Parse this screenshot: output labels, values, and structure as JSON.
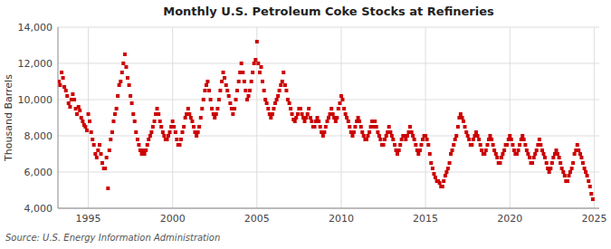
{
  "chart_data": {
    "type": "scatter",
    "title": "Monthly U.S. Petroleum Coke Stocks at Refineries",
    "y_label": "Thousand Barrels",
    "annotation": "Source: U.S. Energy Information Administration",
    "color": "#CC0000",
    "marker": "square",
    "grid": true,
    "xlim": [
      1993.2,
      2025.3
    ],
    "xticks": [
      1995,
      2000,
      2005,
      2010,
      2015,
      2020,
      2025
    ],
    "ylim": [
      4000,
      14000
    ],
    "yticks": [
      {
        "value": 4000,
        "label": "4,000"
      },
      {
        "value": 6000,
        "label": "6,000"
      },
      {
        "value": 8000,
        "label": "8,000"
      },
      {
        "value": 10000,
        "label": "10,000"
      },
      {
        "value": 12000,
        "label": "12,000"
      },
      {
        "value": 14000,
        "label": "14,000"
      }
    ],
    "x": [
      1993.25,
      1993.33,
      1993.42,
      1993.5,
      1993.58,
      1993.67,
      1993.75,
      1993.83,
      1993.92,
      1994.0,
      1994.08,
      1994.17,
      1994.25,
      1994.33,
      1994.42,
      1994.5,
      1994.58,
      1994.67,
      1994.75,
      1994.83,
      1994.92,
      1995.0,
      1995.08,
      1995.17,
      1995.25,
      1995.33,
      1995.42,
      1995.5,
      1995.58,
      1995.67,
      1995.75,
      1995.83,
      1995.92,
      1996.0,
      1996.08,
      1996.17,
      1996.25,
      1996.33,
      1996.42,
      1996.5,
      1996.58,
      1996.67,
      1996.75,
      1996.83,
      1996.92,
      1997.0,
      1997.08,
      1997.17,
      1997.25,
      1997.33,
      1997.42,
      1997.5,
      1997.58,
      1997.67,
      1997.75,
      1997.83,
      1997.92,
      1998.0,
      1998.08,
      1998.17,
      1998.25,
      1998.33,
      1998.42,
      1998.5,
      1998.58,
      1998.67,
      1998.75,
      1998.83,
      1998.92,
      1999.0,
      1999.08,
      1999.17,
      1999.25,
      1999.33,
      1999.42,
      1999.5,
      1999.58,
      1999.67,
      1999.75,
      1999.83,
      1999.92,
      2000.0,
      2000.08,
      2000.17,
      2000.25,
      2000.33,
      2000.42,
      2000.5,
      2000.58,
      2000.67,
      2000.75,
      2000.83,
      2000.92,
      2001.0,
      2001.08,
      2001.17,
      2001.25,
      2001.33,
      2001.42,
      2001.5,
      2001.58,
      2001.67,
      2001.75,
      2001.83,
      2001.92,
      2002.0,
      2002.08,
      2002.17,
      2002.25,
      2002.33,
      2002.42,
      2002.5,
      2002.58,
      2002.67,
      2002.75,
      2002.83,
      2002.92,
      2003.0,
      2003.08,
      2003.17,
      2003.25,
      2003.33,
      2003.42,
      2003.5,
      2003.58,
      2003.67,
      2003.75,
      2003.83,
      2003.92,
      2004.0,
      2004.08,
      2004.17,
      2004.25,
      2004.33,
      2004.42,
      2004.5,
      2004.58,
      2004.67,
      2004.75,
      2004.83,
      2004.92,
      2005.0,
      2005.08,
      2005.17,
      2005.25,
      2005.33,
      2005.42,
      2005.5,
      2005.58,
      2005.67,
      2005.75,
      2005.83,
      2005.92,
      2006.0,
      2006.08,
      2006.17,
      2006.25,
      2006.33,
      2006.42,
      2006.5,
      2006.58,
      2006.67,
      2006.75,
      2006.83,
      2006.92,
      2007.0,
      2007.08,
      2007.17,
      2007.25,
      2007.33,
      2007.42,
      2007.5,
      2007.58,
      2007.67,
      2007.75,
      2007.83,
      2007.92,
      2008.0,
      2008.08,
      2008.17,
      2008.25,
      2008.33,
      2008.42,
      2008.5,
      2008.58,
      2008.67,
      2008.75,
      2008.83,
      2008.92,
      2009.0,
      2009.08,
      2009.17,
      2009.25,
      2009.33,
      2009.42,
      2009.5,
      2009.58,
      2009.67,
      2009.75,
      2009.83,
      2009.92,
      2010.0,
      2010.08,
      2010.17,
      2010.25,
      2010.33,
      2010.42,
      2010.5,
      2010.58,
      2010.67,
      2010.75,
      2010.83,
      2010.92,
      2011.0,
      2011.08,
      2011.17,
      2011.25,
      2011.33,
      2011.42,
      2011.5,
      2011.58,
      2011.67,
      2011.75,
      2011.83,
      2011.92,
      2012.0,
      2012.08,
      2012.17,
      2012.25,
      2012.33,
      2012.42,
      2012.5,
      2012.58,
      2012.67,
      2012.75,
      2012.83,
      2012.92,
      2013.0,
      2013.08,
      2013.17,
      2013.25,
      2013.33,
      2013.42,
      2013.5,
      2013.58,
      2013.67,
      2013.75,
      2013.83,
      2013.92,
      2014.0,
      2014.08,
      2014.17,
      2014.25,
      2014.33,
      2014.42,
      2014.5,
      2014.58,
      2014.67,
      2014.75,
      2014.83,
      2014.92,
      2015.0,
      2015.08,
      2015.17,
      2015.25,
      2015.33,
      2015.42,
      2015.5,
      2015.58,
      2015.67,
      2015.75,
      2015.83,
      2015.92,
      2016.0,
      2016.08,
      2016.17,
      2016.25,
      2016.33,
      2016.42,
      2016.5,
      2016.58,
      2016.67,
      2016.75,
      2016.83,
      2016.92,
      2017.0,
      2017.08,
      2017.17,
      2017.25,
      2017.33,
      2017.42,
      2017.5,
      2017.58,
      2017.67,
      2017.75,
      2017.83,
      2017.92,
      2018.0,
      2018.08,
      2018.17,
      2018.25,
      2018.33,
      2018.42,
      2018.5,
      2018.58,
      2018.67,
      2018.75,
      2018.83,
      2018.92,
      2019.0,
      2019.08,
      2019.17,
      2019.25,
      2019.33,
      2019.42,
      2019.5,
      2019.58,
      2019.67,
      2019.75,
      2019.83,
      2019.92,
      2020.0,
      2020.08,
      2020.17,
      2020.25,
      2020.33,
      2020.42,
      2020.5,
      2020.58,
      2020.67,
      2020.75,
      2020.83,
      2020.92,
      2021.0,
      2021.08,
      2021.17,
      2021.25,
      2021.33,
      2021.42,
      2021.5,
      2021.58,
      2021.67,
      2021.75,
      2021.83,
      2021.92,
      2022.0,
      2022.08,
      2022.17,
      2022.25,
      2022.33,
      2022.42,
      2022.5,
      2022.58,
      2022.67,
      2022.75,
      2022.83,
      2022.92,
      2023.0,
      2023.08,
      2023.17,
      2023.25,
      2023.33,
      2023.42,
      2023.5,
      2023.58,
      2023.67,
      2023.75,
      2023.83,
      2023.92,
      2024.0,
      2024.08,
      2024.17,
      2024.25,
      2024.33,
      2024.42,
      2024.5,
      2024.58,
      2024.67,
      2024.75,
      2024.83,
      2024.92
    ],
    "values": [
      11000,
      10800,
      11500,
      11200,
      10700,
      10500,
      10200,
      9800,
      9600,
      10000,
      10300,
      10000,
      9500,
      9200,
      9600,
      9400,
      9000,
      8800,
      8600,
      8500,
      8300,
      9200,
      8800,
      8200,
      7800,
      7500,
      7000,
      6800,
      7200,
      7500,
      7000,
      6500,
      6200,
      6200,
      6800,
      5100,
      7200,
      7800,
      8200,
      8800,
      9200,
      9500,
      10200,
      10800,
      11000,
      11500,
      12000,
      12500,
      11800,
      11200,
      10800,
      10200,
      9800,
      9200,
      8800,
      8200,
      7800,
      7500,
      7200,
      7000,
      7200,
      7000,
      7200,
      7500,
      7800,
      8000,
      8200,
      8500,
      8800,
      9200,
      9500,
      9200,
      8800,
      8500,
      8200,
      8000,
      7800,
      7800,
      8000,
      8200,
      8500,
      8800,
      8500,
      8200,
      7800,
      7500,
      7500,
      7800,
      8200,
      8500,
      9000,
      9200,
      9500,
      9200,
      9000,
      8800,
      8500,
      8200,
      8000,
      8200,
      8500,
      9000,
      9500,
      10000,
      10500,
      10800,
      11000,
      10500,
      10000,
      9500,
      9200,
      9000,
      9200,
      9500,
      10000,
      10500,
      11000,
      11500,
      11200,
      10800,
      10500,
      10200,
      9800,
      9500,
      9200,
      9500,
      10000,
      10500,
      11000,
      11500,
      12000,
      11500,
      11000,
      10500,
      10000,
      10200,
      10500,
      11000,
      11500,
      12000,
      12200,
      13200,
      12000,
      11500,
      11800,
      11000,
      10500,
      10000,
      9800,
      9500,
      9200,
      9000,
      9200,
      9500,
      9800,
      10000,
      10200,
      10500,
      10800,
      11000,
      11500,
      10800,
      10500,
      10000,
      9800,
      9500,
      9200,
      8900,
      8800,
      9000,
      9200,
      9500,
      9500,
      9200,
      9000,
      8800,
      9000,
      9200,
      9500,
      9000,
      8800,
      8500,
      8500,
      8800,
      9000,
      8800,
      8500,
      8200,
      8000,
      8200,
      8500,
      8800,
      9000,
      9200,
      9500,
      9200,
      9000,
      8800,
      9000,
      9500,
      9800,
      10200,
      10000,
      9500,
      9200,
      9000,
      8800,
      8500,
      8200,
      8000,
      8200,
      8500,
      8800,
      9000,
      8800,
      8500,
      8200,
      8000,
      7800,
      7800,
      8000,
      8200,
      8500,
      8800,
      8500,
      8800,
      8500,
      8200,
      8000,
      7800,
      7500,
      7500,
      7800,
      8000,
      8200,
      8500,
      8200,
      8000,
      7800,
      7500,
      7200,
      7000,
      7200,
      7500,
      7800,
      8000,
      8000,
      7800,
      8000,
      8200,
      8500,
      8200,
      8000,
      7800,
      7500,
      7200,
      7000,
      7200,
      7500,
      7800,
      8000,
      8000,
      7800,
      7500,
      7000,
      6500,
      6200,
      5900,
      5700,
      5500,
      5500,
      5400,
      5200,
      5200,
      5500,
      5800,
      6000,
      6200,
      6500,
      7000,
      7200,
      7500,
      7800,
      8000,
      8500,
      9000,
      9200,
      9000,
      8800,
      8500,
      8200,
      8000,
      7800,
      7500,
      7500,
      7800,
      8000,
      8200,
      8000,
      7800,
      7500,
      7200,
      7000,
      7000,
      7200,
      7500,
      7800,
      8000,
      7800,
      7500,
      7200,
      7000,
      6800,
      6500,
      6500,
      6800,
      7000,
      7200,
      7500,
      7500,
      7800,
      8000,
      7800,
      7500,
      7200,
      7000,
      7000,
      7200,
      7500,
      7800,
      8000,
      7800,
      7500,
      7200,
      7000,
      6800,
      6500,
      6500,
      6800,
      7000,
      7200,
      7500,
      7800,
      7500,
      7200,
      7000,
      6800,
      6500,
      6200,
      6000,
      6200,
      6500,
      6800,
      7000,
      7200,
      7000,
      6800,
      6500,
      6200,
      6000,
      5800,
      5500,
      5500,
      5800,
      6000,
      6200,
      6500,
      7000,
      7200,
      7500,
      7200,
      7000,
      6800,
      6500,
      6200,
      6000,
      5800,
      5500,
      5200,
      4800,
      4500
    ]
  }
}
